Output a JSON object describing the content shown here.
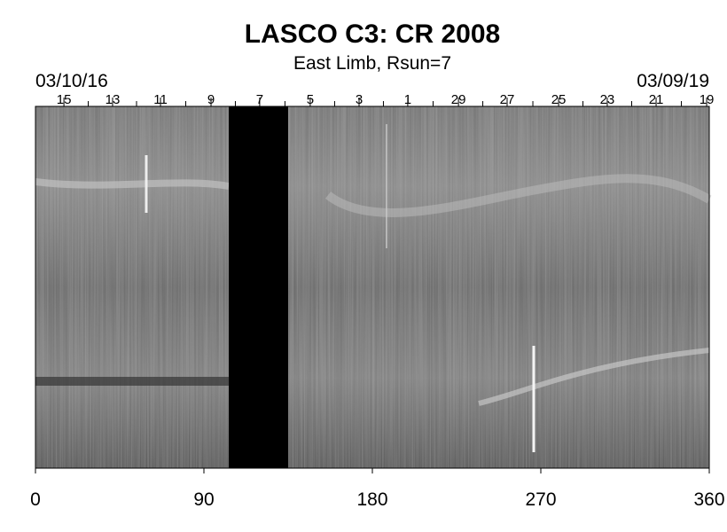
{
  "chart_data": {
    "type": "synoptic-map",
    "title": "LASCO C3: CR 2008",
    "subtitle": "East Limb, Rsun=7",
    "start_date": "03/10/16",
    "end_date": "03/09/19",
    "xlim": [
      0,
      360
    ],
    "xticks": [
      0,
      90,
      180,
      270,
      360
    ],
    "top_ticks": [
      {
        "value": 15.2,
        "label": "15"
      },
      {
        "value": 41.2,
        "label": "13"
      },
      {
        "value": 66.8,
        "label": "11"
      },
      {
        "value": 93.8,
        "label": "9"
      },
      {
        "value": 119.8,
        "label": "7"
      },
      {
        "value": 146.8,
        "label": "5"
      },
      {
        "value": 172.9,
        "label": "3"
      },
      {
        "value": 198.9,
        "label": "1"
      },
      {
        "value": 226,
        "label": "29"
      },
      {
        "value": 252,
        "label": "27"
      },
      {
        "value": 279.5,
        "label": "25"
      },
      {
        "value": 305.5,
        "label": "23"
      },
      {
        "value": 331.6,
        "label": "21"
      },
      {
        "value": 358.6,
        "label": "19"
      }
    ],
    "data_gap": [
      103.3,
      135
    ]
  }
}
